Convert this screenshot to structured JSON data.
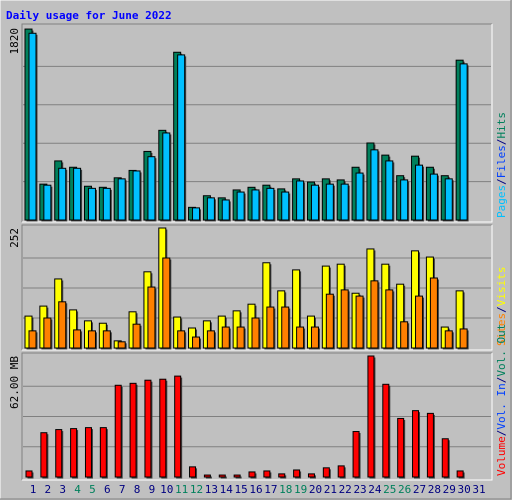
{
  "chart_data": [
    {
      "type": "bar",
      "title": "Daily usage for June 2022",
      "categories": [
        "1",
        "2",
        "3",
        "4",
        "5",
        "6",
        "7",
        "8",
        "9",
        "10",
        "11",
        "12",
        "13",
        "14",
        "15",
        "16",
        "17",
        "18",
        "19",
        "20",
        "21",
        "22",
        "23",
        "24",
        "25",
        "26",
        "27",
        "28",
        "29",
        "30",
        "31"
      ],
      "category_colors": [
        "#000080",
        "#000080",
        "#000080",
        "#00805c",
        "#00805c",
        "#000080",
        "#000080",
        "#000080",
        "#000080",
        "#000080",
        "#00805c",
        "#00805c",
        "#000080",
        "#000080",
        "#000080",
        "#000080",
        "#000080",
        "#00805c",
        "#00805c",
        "#000080",
        "#000080",
        "#000080",
        "#000080",
        "#000080",
        "#00805c",
        "#00805c",
        "#000080",
        "#000080",
        "#000080",
        "#000080",
        "#000080"
      ],
      "ylim": [
        0,
        1820
      ],
      "yticks": [
        1820
      ],
      "series": [
        {
          "color": "#00805c",
          "values": [
            1810,
            340,
            560,
            500,
            320,
            310,
            400,
            470,
            650,
            850,
            1590,
            120,
            230,
            210,
            285,
            310,
            330,
            295,
            390,
            360,
            390,
            380,
            500,
            730,
            615,
            420,
            605,
            500,
            420,
            1515,
            null
          ]
        },
        {
          "color": "#00c0ff",
          "values": [
            1770,
            330,
            490,
            490,
            300,
            300,
            390,
            465,
            600,
            825,
            1565,
            115,
            210,
            190,
            265,
            285,
            300,
            265,
            370,
            330,
            340,
            340,
            445,
            665,
            560,
            380,
            520,
            435,
            390,
            1480,
            null
          ]
        }
      ],
      "right_labels": [
        {
          "text": "Pages",
          "color": "#00c0ff"
        },
        {
          "text": "/",
          "color": "#000080"
        },
        {
          "text": "Files",
          "color": "#0040ff"
        },
        {
          "text": "/",
          "color": "#000080"
        },
        {
          "text": "Hits",
          "color": "#00805c"
        }
      ]
    },
    {
      "type": "bar",
      "ylim": [
        0,
        252
      ],
      "yticks": [
        252
      ],
      "series": [
        {
          "color": "#ffff00",
          "values": [
            67,
            88,
            145,
            80,
            57,
            52,
            15,
            76,
            160,
            252,
            65,
            42,
            57,
            67,
            78,
            92,
            179,
            120,
            164,
            67,
            172,
            176,
            115,
            208,
            176,
            134,
            204,
            191,
            44,
            120,
            null
          ]
        },
        {
          "color": "#ff8000",
          "values": [
            36,
            63,
            97,
            38,
            36,
            36,
            13,
            50,
            128,
            189,
            36,
            23,
            36,
            44,
            44,
            63,
            86,
            86,
            44,
            44,
            113,
            122,
            109,
            141,
            122,
            55,
            109,
            147,
            36,
            40,
            null
          ]
        }
      ],
      "right_labels": [
        {
          "text": "Sites",
          "color": "#ff8000"
        },
        {
          "text": "/",
          "color": "#000080"
        },
        {
          "text": "Visits",
          "color": "#ffff00"
        }
      ]
    },
    {
      "type": "bar",
      "ylim": [
        0,
        62
      ],
      "yticks": [
        {
          "value": 62,
          "label": "62.00 MB"
        }
      ],
      "series": [
        {
          "color": "#ff0000",
          "values": [
            3.1,
            22.7,
            24.3,
            24.8,
            25.3,
            25.3,
            47,
            48,
            49.6,
            50.1,
            51.7,
            5.2,
            1.0,
            1.0,
            1.0,
            2.6,
            3.1,
            1.6,
            3.6,
            1.6,
            4.7,
            5.7,
            23.3,
            62,
            47.5,
            30,
            34,
            32.6,
            19.6,
            3.1,
            null
          ]
        }
      ],
      "right_labels": [
        {
          "text": "Volume",
          "color": "#ff0000"
        },
        {
          "text": "/",
          "color": "#000080"
        },
        {
          "text": "Vol. In",
          "color": "#0040ff"
        },
        {
          "text": "/",
          "color": "#000080"
        },
        {
          "text": "Vol. Out",
          "color": "#00805c"
        }
      ]
    }
  ]
}
